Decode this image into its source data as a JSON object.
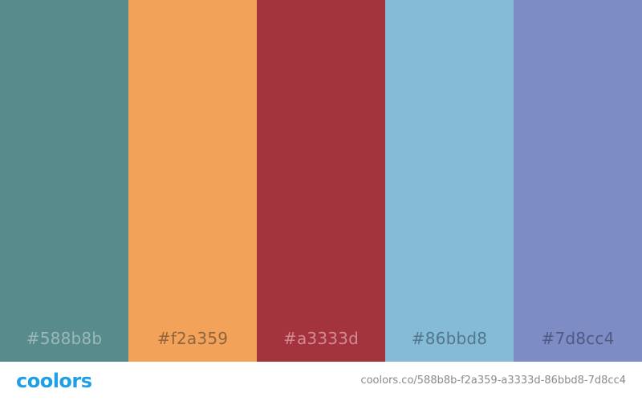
{
  "palette": {
    "swatches": [
      {
        "hex": "#588b8b",
        "color": "#588b8b",
        "label_color": "#9bb9b9"
      },
      {
        "hex": "#f2a359",
        "color": "#f2a359",
        "label_color": "#8f6540"
      },
      {
        "hex": "#a3333d",
        "color": "#a3333d",
        "label_color": "#d18a90"
      },
      {
        "hex": "#86bbd8",
        "color": "#86bbd8",
        "label_color": "#51778c"
      },
      {
        "hex": "#7d8cc4",
        "color": "#7d8cc4",
        "label_color": "#4f5a82"
      }
    ]
  },
  "footer": {
    "logo_text": "coolors",
    "logo_color": "#1f9fe6",
    "url": "coolors.co/588b8b-f2a359-a3333d-86bbd8-7d8cc4",
    "url_color": "#8a8a8a"
  }
}
